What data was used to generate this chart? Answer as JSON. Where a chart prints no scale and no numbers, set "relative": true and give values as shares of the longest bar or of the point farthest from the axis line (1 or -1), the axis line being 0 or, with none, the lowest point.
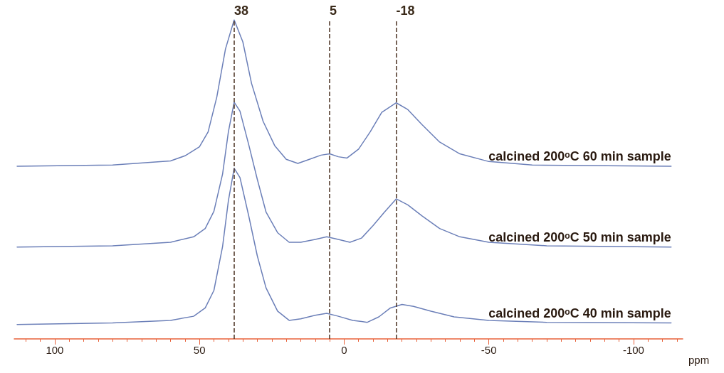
{
  "chart_data": {
    "type": "line",
    "relative": true,
    "xlabel": "ppm",
    "xlim": [
      114,
      -117
    ],
    "xticks": [
      100,
      50,
      0,
      -50,
      -100
    ],
    "tick_labels": "x",
    "grid": false,
    "legend": false,
    "marker": "none",
    "line_style": "solid",
    "series": [
      {
        "name": "calcined 200ᵒC 60 min sample",
        "color": "#6b7fb8",
        "x": [
          113,
          80,
          60,
          55,
          50,
          47,
          44,
          41,
          38,
          35,
          32,
          28,
          24,
          20,
          16,
          12,
          8,
          5,
          2,
          -1,
          -5,
          -9,
          -13,
          -18,
          -22,
          -27,
          -33,
          -40,
          -50,
          -65,
          -113
        ],
        "values": [
          0.541,
          0.545,
          0.558,
          0.574,
          0.602,
          0.649,
          0.758,
          0.909,
          1.0,
          0.931,
          0.801,
          0.682,
          0.606,
          0.563,
          0.55,
          0.563,
          0.576,
          0.58,
          0.571,
          0.567,
          0.595,
          0.649,
          0.71,
          0.74,
          0.719,
          0.671,
          0.617,
          0.58,
          0.556,
          0.545,
          0.541
        ]
      },
      {
        "name": "calcined 200ᵒC 50 min sample",
        "color": "#6b7fb8",
        "x": [
          113,
          80,
          60,
          52,
          48,
          45,
          42,
          40,
          38,
          36,
          33,
          30,
          27,
          23,
          19,
          15,
          10,
          6,
          2,
          -2,
          -6,
          -10,
          -14,
          -18,
          -22,
          -27,
          -33,
          -40,
          -50,
          -70,
          -113
        ],
        "values": [
          0.288,
          0.292,
          0.303,
          0.32,
          0.346,
          0.4,
          0.517,
          0.649,
          0.742,
          0.714,
          0.61,
          0.5,
          0.398,
          0.333,
          0.303,
          0.303,
          0.312,
          0.32,
          0.312,
          0.303,
          0.316,
          0.355,
          0.398,
          0.439,
          0.42,
          0.385,
          0.346,
          0.32,
          0.303,
          0.292,
          0.288
        ]
      },
      {
        "name": "calcined 200ᵒC 40 min sample",
        "color": "#6b7fb8",
        "x": [
          113,
          80,
          60,
          52,
          48,
          45,
          42,
          40,
          38,
          36,
          33,
          30,
          27,
          23,
          19,
          15,
          10,
          6,
          2,
          -3,
          -8,
          -12,
          -16,
          -20,
          -24,
          -30,
          -38,
          -50,
          -70,
          -113
        ],
        "values": [
          0.045,
          0.05,
          0.058,
          0.071,
          0.097,
          0.152,
          0.29,
          0.433,
          0.535,
          0.506,
          0.387,
          0.26,
          0.16,
          0.087,
          0.058,
          0.063,
          0.074,
          0.08,
          0.071,
          0.058,
          0.052,
          0.069,
          0.097,
          0.108,
          0.102,
          0.087,
          0.069,
          0.058,
          0.052,
          0.05
        ]
      }
    ],
    "ref_lines": [
      {
        "axis": "x",
        "value": 38,
        "label": "38",
        "color": "#4a3020",
        "line_style": "dashed"
      },
      {
        "axis": "x",
        "value": 5,
        "label": "5",
        "color": "#4a3020",
        "line_style": "dashed"
      },
      {
        "axis": "x",
        "value": -18,
        "label": "-18",
        "color": "#4a3020",
        "line_style": "dashed"
      }
    ]
  }
}
